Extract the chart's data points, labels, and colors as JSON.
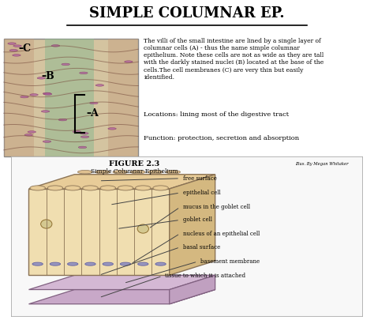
{
  "title": "SIMPLE COLUMNAR EP.",
  "title_fontsize": 13,
  "body_text": "The villi of the small intestine are lined by a single layer of\ncolumnar cells (A) - thus the name simple columnar\nepithelium. Note these cells are not as wide as they are tall\nwith the darkly stained nuclei (B) located at the base of the\ncells.The cell membranes (C) are very thin but easily\nidentified.",
  "locations_text": "Locations: lining most of the digestive tract",
  "function_text": "Function: protection, secretion and absorption",
  "figure_title": "FIGURE 2.3",
  "figure_subtitle": "Simple Columnar Epithelium",
  "illus_credit": "Illus. By Megan Whitaker",
  "labels": [
    "free surface",
    "epithelial cell",
    "mucus in the goblet cell",
    "goblet cell",
    "nucleus of an epithelial cell",
    "basal surface",
    "basement membrane",
    "tissue to which it is attached"
  ],
  "bg_color": "#ffffff",
  "box_bg": "#f8f8f8",
  "cell_color": "#f0deb0",
  "cell_border": "#8b7355",
  "basement_color": "#d4b8d4",
  "tissue_color": "#c8a8c8",
  "nucleus_color": "#9090c0",
  "goblet_color": "#d4c890"
}
